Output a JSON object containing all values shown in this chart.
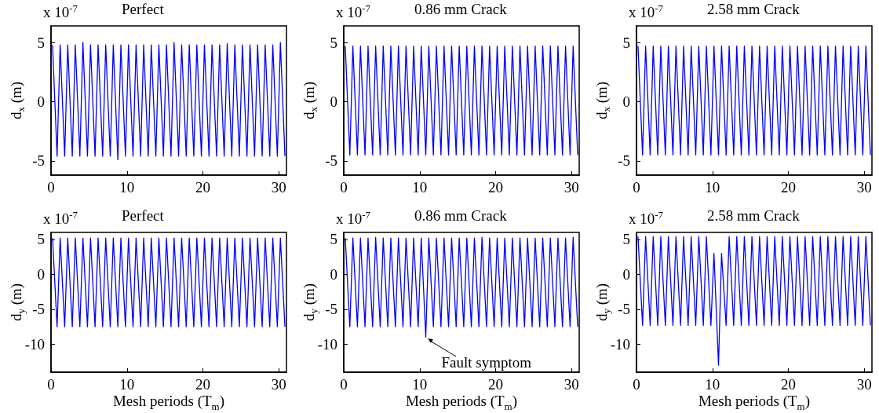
{
  "chart_data": [
    {
      "type": "line",
      "title": "Perfect",
      "ylabel": "d$_{x}$ (m)",
      "annotations": [
        "x 10$^{-7}$"
      ],
      "xlim": [
        0,
        31
      ],
      "xticks": [
        0,
        10,
        20,
        30
      ],
      "ylim": [
        -6.2,
        6.4
      ],
      "yticks": [
        -5,
        0,
        5
      ],
      "marker": "none",
      "line_style": "solid",
      "x": [
        0.2,
        0.8,
        1.2,
        1.8,
        2.2,
        2.8,
        3.2,
        3.8,
        4.2,
        4.8,
        5.2,
        5.8,
        6.2,
        6.8,
        7.2,
        7.8,
        8.2,
        8.8,
        9.2,
        9.8,
        10.2,
        10.8,
        11.2,
        11.8,
        12.2,
        12.8,
        13.2,
        13.8,
        14.2,
        14.8,
        15.2,
        15.8,
        16.2,
        16.8,
        17.2,
        17.8,
        18.2,
        18.8,
        19.2,
        19.8,
        20.2,
        20.8,
        21.2,
        21.8,
        22.2,
        22.8,
        23.2,
        23.8,
        24.2,
        24.8,
        25.2,
        25.8,
        26.2,
        26.8,
        27.2,
        27.8,
        28.2,
        28.8,
        29.2,
        29.8,
        30.2,
        30.8
      ],
      "series": [
        {
          "color": "#0000ff",
          "values": [
            4.8,
            -4.6,
            4.8,
            -4.6,
            4.8,
            -4.6,
            4.8,
            -4.6,
            5.0,
            -4.6,
            4.8,
            -4.6,
            4.8,
            -4.6,
            4.8,
            -4.6,
            4.8,
            -4.9,
            4.8,
            -4.6,
            4.8,
            -4.6,
            4.8,
            -4.6,
            4.8,
            -4.6,
            4.8,
            -4.6,
            4.8,
            -4.6,
            4.8,
            -4.6,
            5.0,
            -4.6,
            4.8,
            -4.6,
            4.8,
            -4.6,
            4.8,
            -4.6,
            4.8,
            -4.6,
            4.8,
            -4.6,
            4.8,
            -4.6,
            4.9,
            -4.6,
            4.8,
            -4.6,
            4.8,
            -4.6,
            4.8,
            -4.6,
            4.8,
            -4.6,
            4.8,
            -4.6,
            4.8,
            -4.6,
            5.0,
            -4.6
          ]
        }
      ]
    },
    {
      "type": "line",
      "title": "0.86 mm Crack",
      "ylabel": "d$_{x}$ (m)",
      "annotations": [
        "x 10$^{-7}$"
      ],
      "xlim": [
        0,
        31
      ],
      "xticks": [
        0,
        10,
        20,
        30
      ],
      "ylim": [
        -6.2,
        6.4
      ],
      "yticks": [
        -5,
        0,
        5
      ],
      "marker": "none",
      "line_style": "solid",
      "x": [
        0.2,
        0.8,
        1.2,
        1.8,
        2.2,
        2.8,
        3.2,
        3.8,
        4.2,
        4.8,
        5.2,
        5.8,
        6.2,
        6.8,
        7.2,
        7.8,
        8.2,
        8.8,
        9.2,
        9.8,
        10.2,
        10.8,
        11.2,
        11.8,
        12.2,
        12.8,
        13.2,
        13.8,
        14.2,
        14.8,
        15.2,
        15.8,
        16.2,
        16.8,
        17.2,
        17.8,
        18.2,
        18.8,
        19.2,
        19.8,
        20.2,
        20.8,
        21.2,
        21.8,
        22.2,
        22.8,
        23.2,
        23.8,
        24.2,
        24.8,
        25.2,
        25.8,
        26.2,
        26.8,
        27.2,
        27.8,
        28.2,
        28.8,
        29.2,
        29.8,
        30.2,
        30.8
      ],
      "series": [
        {
          "color": "#0000ff",
          "values": [
            4.7,
            -4.5,
            4.7,
            -4.5,
            4.7,
            -4.5,
            4.7,
            -4.5,
            4.7,
            -4.5,
            4.7,
            -4.5,
            4.7,
            -4.5,
            4.7,
            -4.5,
            4.7,
            -4.5,
            4.7,
            -4.5,
            4.7,
            -4.5,
            4.7,
            -4.5,
            4.7,
            -4.5,
            4.7,
            -4.5,
            4.7,
            -4.5,
            4.7,
            -4.5,
            4.7,
            -4.5,
            4.7,
            -4.5,
            4.7,
            -4.5,
            4.7,
            -4.5,
            4.7,
            -4.5,
            4.7,
            -4.5,
            4.7,
            -4.5,
            4.7,
            -4.5,
            4.7,
            -4.5,
            4.7,
            -4.5,
            4.7,
            -4.5,
            4.7,
            -4.5,
            4.7,
            -4.5,
            4.7,
            -4.5,
            4.7,
            -4.5
          ]
        }
      ]
    },
    {
      "type": "line",
      "title": "2.58 mm Crack",
      "ylabel": "d$_{x}$ (m)",
      "annotations": [
        "x 10$^{-7}$"
      ],
      "xlim": [
        0,
        31
      ],
      "xticks": [
        0,
        10,
        20,
        30
      ],
      "ylim": [
        -6.2,
        6.4
      ],
      "yticks": [
        -5,
        0,
        5
      ],
      "marker": "none",
      "line_style": "solid",
      "x": [
        0.2,
        0.8,
        1.2,
        1.8,
        2.2,
        2.8,
        3.2,
        3.8,
        4.2,
        4.8,
        5.2,
        5.8,
        6.2,
        6.8,
        7.2,
        7.8,
        8.2,
        8.8,
        9.2,
        9.8,
        10.2,
        10.8,
        11.2,
        11.8,
        12.2,
        12.8,
        13.2,
        13.8,
        14.2,
        14.8,
        15.2,
        15.8,
        16.2,
        16.8,
        17.2,
        17.8,
        18.2,
        18.8,
        19.2,
        19.8,
        20.2,
        20.8,
        21.2,
        21.8,
        22.2,
        22.8,
        23.2,
        23.8,
        24.2,
        24.8,
        25.2,
        25.8,
        26.2,
        26.8,
        27.2,
        27.8,
        28.2,
        28.8,
        29.2,
        29.8,
        30.2,
        30.8
      ],
      "series": [
        {
          "color": "#0000ff",
          "values": [
            4.7,
            -4.5,
            4.7,
            -4.5,
            4.7,
            -4.5,
            4.7,
            -4.5,
            4.7,
            -4.5,
            4.7,
            -4.5,
            4.7,
            -4.5,
            4.7,
            -4.5,
            4.7,
            -4.5,
            4.7,
            -4.5,
            4.7,
            -4.5,
            4.7,
            -4.5,
            4.7,
            -4.5,
            4.7,
            -4.5,
            4.7,
            -4.5,
            4.7,
            -4.5,
            4.7,
            -4.5,
            4.7,
            -4.5,
            4.7,
            -4.5,
            4.7,
            -4.5,
            4.7,
            -4.5,
            4.7,
            -4.5,
            4.7,
            -4.5,
            4.7,
            -4.5,
            4.7,
            -4.5,
            4.7,
            -4.5,
            4.7,
            -4.5,
            4.7,
            -4.5,
            4.7,
            -4.5,
            4.7,
            -4.5,
            4.7,
            -4.5
          ]
        }
      ]
    },
    {
      "type": "line",
      "title": "Perfect",
      "xlabel": "Mesh periods (T$_{m}$)",
      "ylabel": "d$_{y}$ (m)",
      "annotations": [
        "x 10$^{-7}$"
      ],
      "xlim": [
        0,
        31
      ],
      "xticks": [
        0,
        10,
        20,
        30
      ],
      "ylim": [
        -14,
        6
      ],
      "yticks": [
        -10,
        -5,
        0,
        5
      ],
      "marker": "none",
      "line_style": "solid",
      "x": [
        0.2,
        0.8,
        1.2,
        1.8,
        2.2,
        2.8,
        3.2,
        3.8,
        4.2,
        4.8,
        5.2,
        5.8,
        6.2,
        6.8,
        7.2,
        7.8,
        8.2,
        8.8,
        9.2,
        9.8,
        10.2,
        10.8,
        11.2,
        11.8,
        12.2,
        12.8,
        13.2,
        13.8,
        14.2,
        14.8,
        15.2,
        15.8,
        16.2,
        16.8,
        17.2,
        17.8,
        18.2,
        18.8,
        19.2,
        19.8,
        20.2,
        20.8,
        21.2,
        21.8,
        22.2,
        22.8,
        23.2,
        23.8,
        24.2,
        24.8,
        25.2,
        25.8,
        26.2,
        26.8,
        27.2,
        27.8,
        28.2,
        28.8,
        29.2,
        29.8,
        30.2,
        30.8
      ],
      "series": [
        {
          "color": "#0000ff",
          "values": [
            5.2,
            -7.5,
            5.2,
            -7.5,
            5.2,
            -7.5,
            5.2,
            -7.5,
            5.2,
            -7.5,
            5.2,
            -7.5,
            5.2,
            -7.5,
            5.2,
            -7.5,
            5.2,
            -7.5,
            5.2,
            -7.5,
            5.2,
            -7.5,
            5.2,
            -7.5,
            5.2,
            -7.5,
            5.2,
            -7.5,
            5.2,
            -7.5,
            5.2,
            -7.5,
            5.2,
            -7.5,
            5.2,
            -7.5,
            5.2,
            -7.5,
            5.2,
            -7.5,
            5.2,
            -7.5,
            5.2,
            -7.5,
            5.2,
            -7.5,
            5.2,
            -7.5,
            5.2,
            -7.5,
            5.2,
            -7.5,
            5.2,
            -7.5,
            5.2,
            -7.5,
            5.2,
            -7.5,
            5.2,
            -7.5,
            5.2,
            -7.5
          ]
        }
      ]
    },
    {
      "type": "line",
      "title": "0.86 mm Crack",
      "xlabel": "Mesh periods (T$_{m}$)",
      "ylabel": "d$_{y}$ (m)",
      "annotations": [
        "x 10$^{-7}$",
        {
          "text": "Fault symptom",
          "x": 10.8,
          "y": -9.0
        }
      ],
      "xlim": [
        0,
        31
      ],
      "xticks": [
        0,
        10,
        20,
        30
      ],
      "ylim": [
        -14,
        6
      ],
      "yticks": [
        -10,
        -5,
        0,
        5
      ],
      "marker": "none",
      "line_style": "solid",
      "x": [
        0.2,
        0.8,
        1.2,
        1.8,
        2.2,
        2.8,
        3.2,
        3.8,
        4.2,
        4.8,
        5.2,
        5.8,
        6.2,
        6.8,
        7.2,
        7.8,
        8.2,
        8.8,
        9.2,
        9.8,
        10.2,
        10.8,
        11.2,
        11.8,
        12.2,
        12.8,
        13.2,
        13.8,
        14.2,
        14.8,
        15.2,
        15.8,
        16.2,
        16.8,
        17.2,
        17.8,
        18.2,
        18.8,
        19.2,
        19.8,
        20.2,
        20.8,
        21.2,
        21.8,
        22.2,
        22.8,
        23.2,
        23.8,
        24.2,
        24.8,
        25.2,
        25.8,
        26.2,
        26.8,
        27.2,
        27.8,
        28.2,
        28.8,
        29.2,
        29.8,
        30.2,
        30.8
      ],
      "series": [
        {
          "color": "#0000ff",
          "values": [
            5.2,
            -7.5,
            5.2,
            -7.5,
            5.2,
            -7.5,
            5.2,
            -7.5,
            5.3,
            -7.5,
            5.2,
            -7.5,
            5.2,
            -7.5,
            5.2,
            -7.5,
            5.2,
            -7.5,
            5.2,
            -7.5,
            5.2,
            -9.0,
            5.2,
            -7.5,
            5.2,
            -7.5,
            5.2,
            -7.5,
            5.2,
            -7.5,
            5.2,
            -7.5,
            5.2,
            -7.5,
            5.2,
            -7.5,
            5.3,
            -7.5,
            5.2,
            -7.5,
            5.2,
            -7.5,
            5.2,
            -7.5,
            5.2,
            -7.5,
            5.2,
            -7.5,
            5.2,
            -7.5,
            5.2,
            -7.5,
            5.2,
            -7.5,
            5.2,
            -7.5,
            5.2,
            -7.5,
            5.2,
            -7.5,
            5.3,
            -7.5
          ]
        }
      ]
    },
    {
      "type": "line",
      "title": "2.58 mm Crack",
      "xlabel": "Mesh periods (T$_{m}$)",
      "ylabel": "d$_{y}$ (m)",
      "annotations": [
        "x 10$^{-7}$"
      ],
      "xlim": [
        0,
        31
      ],
      "xticks": [
        0,
        10,
        20,
        30
      ],
      "ylim": [
        -14,
        6
      ],
      "yticks": [
        -10,
        -5,
        0,
        5
      ],
      "marker": "none",
      "line_style": "solid",
      "x": [
        0.2,
        0.8,
        1.2,
        1.8,
        2.2,
        2.8,
        3.2,
        3.8,
        4.2,
        4.8,
        5.2,
        5.8,
        6.2,
        6.8,
        7.2,
        7.8,
        8.2,
        8.8,
        9.2,
        9.8,
        10.2,
        10.8,
        11.2,
        11.8,
        12.2,
        12.8,
        13.2,
        13.8,
        14.2,
        14.8,
        15.2,
        15.8,
        16.2,
        16.8,
        17.2,
        17.8,
        18.2,
        18.8,
        19.2,
        19.8,
        20.2,
        20.8,
        21.2,
        21.8,
        22.2,
        22.8,
        23.2,
        23.8,
        24.2,
        24.8,
        25.2,
        25.8,
        26.2,
        26.8,
        27.2,
        27.8,
        28.2,
        28.8,
        29.2,
        29.8,
        30.2,
        30.8
      ],
      "series": [
        {
          "color": "#0000ff",
          "values": [
            5.4,
            -7.3,
            5.4,
            -7.3,
            5.4,
            -7.3,
            5.4,
            -7.3,
            5.4,
            -7.3,
            5.4,
            -7.3,
            5.4,
            -7.3,
            5.4,
            -7.3,
            5.4,
            -7.3,
            5.4,
            -7.3,
            3.0,
            -13.0,
            3.0,
            -7.3,
            5.4,
            -7.3,
            5.4,
            -7.3,
            5.4,
            -7.3,
            5.4,
            -7.3,
            5.4,
            -7.3,
            5.4,
            -7.3,
            5.4,
            -7.3,
            5.4,
            -7.3,
            5.4,
            -7.3,
            5.4,
            -7.3,
            5.4,
            -7.3,
            5.4,
            -7.3,
            5.4,
            -7.3,
            5.4,
            -7.3,
            5.4,
            -7.3,
            5.4,
            -7.3,
            5.4,
            -7.3,
            5.4,
            -7.3,
            5.4,
            -7.3
          ]
        }
      ]
    }
  ]
}
